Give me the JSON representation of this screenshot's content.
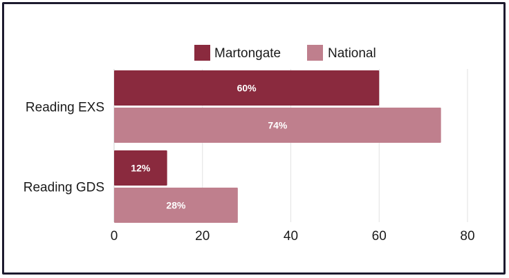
{
  "chart_data": {
    "type": "bar",
    "orientation": "horizontal",
    "categories": [
      "Reading EXS",
      "Reading GDS"
    ],
    "series": [
      {
        "name": "Martongate",
        "values": [
          60,
          12
        ],
        "labels": [
          "60%",
          "12%"
        ],
        "color": "#8a2a3e"
      },
      {
        "name": "National",
        "values": [
          74,
          28
        ],
        "labels": [
          "74%",
          "28%"
        ],
        "color": "#bf7f8d"
      }
    ],
    "xlim": [
      0,
      80
    ],
    "xticks": [
      0,
      20,
      40,
      60,
      80
    ],
    "grid": true,
    "legend_position": "top"
  }
}
